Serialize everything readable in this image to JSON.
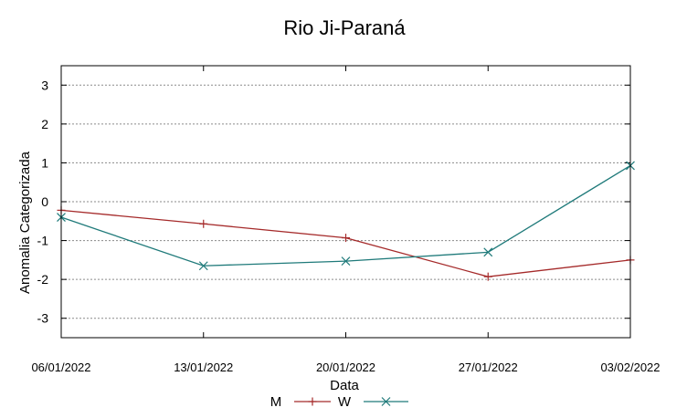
{
  "chart_data": {
    "type": "line",
    "title": "Rio Ji-Paraná",
    "xlabel": "Data",
    "ylabel": "Anomalia Categorizada",
    "categories": [
      "06/01/2022",
      "13/01/2022",
      "20/01/2022",
      "27/01/2022",
      "03/02/2022"
    ],
    "ylim": [
      -3.5,
      3.5
    ],
    "yticks": [
      -3,
      -2,
      -1,
      0,
      1,
      2,
      3
    ],
    "grid": true,
    "legend_position": "bottom",
    "series": [
      {
        "name": "M",
        "marker": "+",
        "color": "#a52a2a",
        "values": [
          -0.22,
          -0.57,
          -0.93,
          -1.93,
          -1.5
        ]
      },
      {
        "name": "W",
        "marker": "x",
        "color": "#1f7a7a",
        "values": [
          -0.4,
          -1.65,
          -1.53,
          -1.3,
          0.93
        ]
      }
    ]
  }
}
